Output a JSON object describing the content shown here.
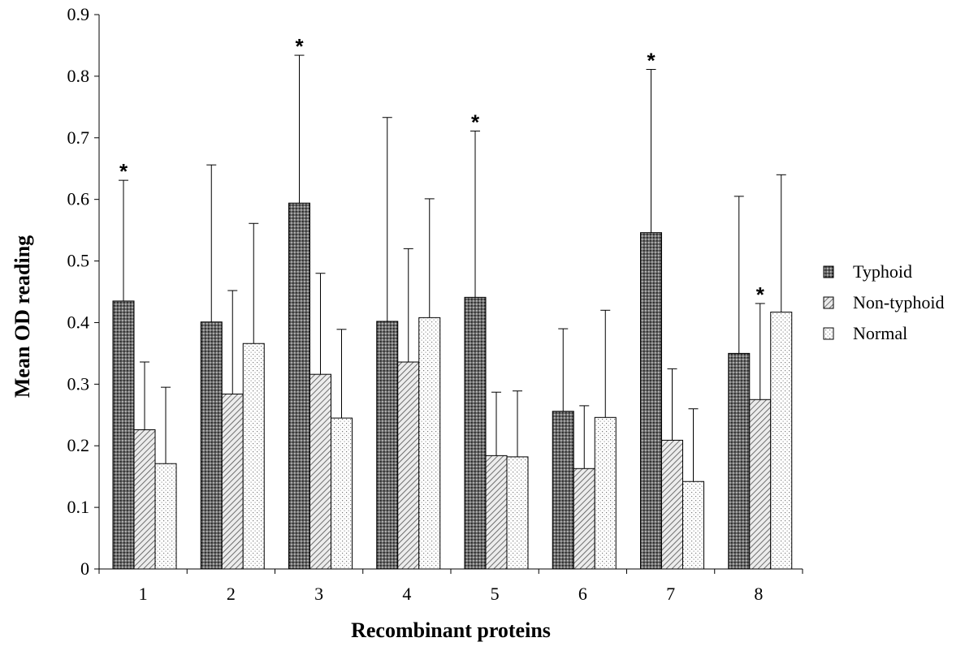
{
  "chart_data": {
    "type": "bar",
    "xlabel": "Recombinant proteins",
    "ylabel": "Mean OD reading",
    "categories": [
      "1",
      "2",
      "3",
      "4",
      "5",
      "6",
      "7",
      "8"
    ],
    "ylim": [
      0,
      0.9
    ],
    "yticks": [
      "0",
      "0.1",
      "0.2",
      "0.3",
      "0.4",
      "0.5",
      "0.6",
      "0.7",
      "0.8",
      "0.9"
    ],
    "grid": false,
    "legend_position": "right",
    "series": [
      {
        "name": "Typhoid",
        "values": [
          0.435,
          0.401,
          0.594,
          0.402,
          0.441,
          0.256,
          0.546,
          0.35
        ],
        "error_upper": [
          0.631,
          0.656,
          0.834,
          0.733,
          0.711,
          0.39,
          0.811,
          0.605
        ],
        "pattern": "dark-dots",
        "color": "#555555"
      },
      {
        "name": "Non-typhoid",
        "values": [
          0.226,
          0.284,
          0.316,
          0.336,
          0.184,
          0.163,
          0.209,
          0.275
        ],
        "error_upper": [
          0.336,
          0.452,
          0.48,
          0.52,
          0.287,
          0.265,
          0.325,
          0.431
        ],
        "pattern": "diagonal-hatch",
        "color": "#cccccc"
      },
      {
        "name": "Normal",
        "values": [
          0.171,
          0.366,
          0.245,
          0.408,
          0.182,
          0.246,
          0.142,
          0.417
        ],
        "error_upper": [
          0.295,
          0.561,
          0.389,
          0.601,
          0.289,
          0.42,
          0.26,
          0.64
        ],
        "pattern": "light-dots",
        "color": "#ffffff"
      }
    ],
    "annotations": [
      {
        "text": "*",
        "category": "1",
        "series": "Typhoid"
      },
      {
        "text": "*",
        "category": "3",
        "series": "Typhoid"
      },
      {
        "text": "*",
        "category": "5",
        "series": "Typhoid"
      },
      {
        "text": "*",
        "category": "7",
        "series": "Typhoid"
      },
      {
        "text": "*",
        "category": "8",
        "series": "Non-typhoid"
      }
    ]
  }
}
